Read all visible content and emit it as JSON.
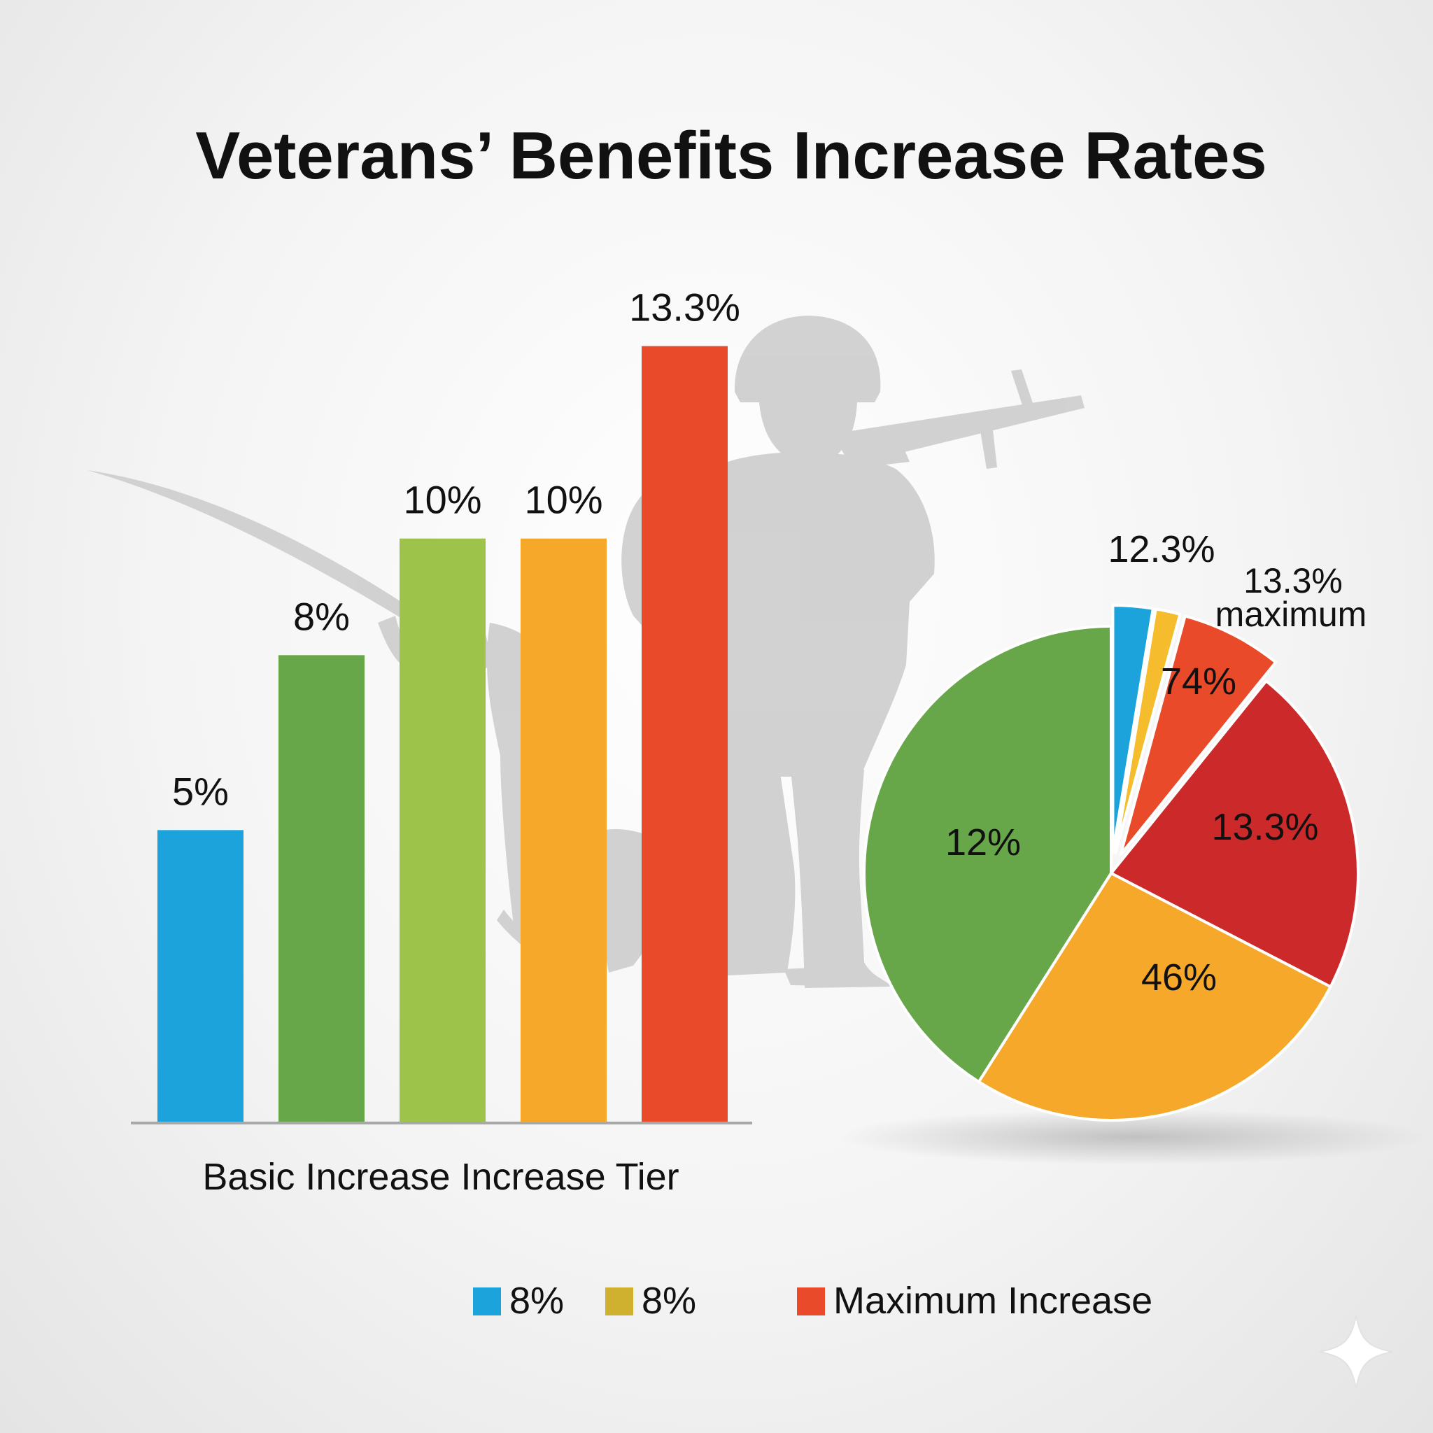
{
  "title": "Veterans’ Benefits Increase Rates",
  "colors": {
    "blue": "#1ca3dc",
    "dark_green": "#68a64a",
    "light_green": "#9dc34a",
    "orange": "#f5a82a",
    "red_orange": "#e84a2a",
    "crimson": "#cc2a2a",
    "yellow": "#f5bd2d",
    "olive_yellow": "#cfb12f",
    "silhouette": "#cdcdcd",
    "axis": "#a8a8a8",
    "text": "#111111"
  },
  "chart_data": [
    {
      "type": "bar",
      "title": "Veterans’ Benefits Increase Rates",
      "xlabel": "Basic Increase Increase Tier",
      "ylabel": "",
      "ylim": [
        0,
        15
      ],
      "grid": false,
      "categories": [
        "",
        "",
        "",
        "",
        ""
      ],
      "values": [
        5,
        8,
        10,
        10,
        13.3
      ],
      "data_labels": [
        "5%",
        "8%",
        "10%",
        "10%",
        "13.3%"
      ],
      "bar_colors": [
        "#1ca3dc",
        "#68a64a",
        "#9dc34a",
        "#f5a82a",
        "#e84a2a"
      ]
    },
    {
      "type": "pie",
      "slices": [
        {
          "label": "12.3%",
          "value": 2.6,
          "color": "#1ca3dc",
          "exploded": true
        },
        {
          "label": "",
          "value": 1.6,
          "color": "#f5bd2d",
          "exploded": true
        },
        {
          "label": "74%",
          "value": 6.6,
          "color": "#e84a2a",
          "exploded": true
        },
        {
          "label": "13.3%",
          "value": 21.8,
          "color": "#cc2a2a",
          "exploded": false
        },
        {
          "label": "46%",
          "value": 26.4,
          "color": "#f5a82a",
          "exploded": false
        },
        {
          "label": "12%",
          "value": 41.0,
          "color": "#68a64a",
          "exploded": false
        }
      ],
      "annotation_lines": [
        "13.3%",
        "maximum"
      ]
    }
  ],
  "legend": {
    "placement": "bottom-center",
    "items": [
      {
        "label": "8%",
        "color": "#1ca3dc"
      },
      {
        "label": "8%",
        "color": "#cfb12f"
      },
      {
        "label": "Maximum Increase",
        "color": "#e84a2a"
      }
    ]
  }
}
